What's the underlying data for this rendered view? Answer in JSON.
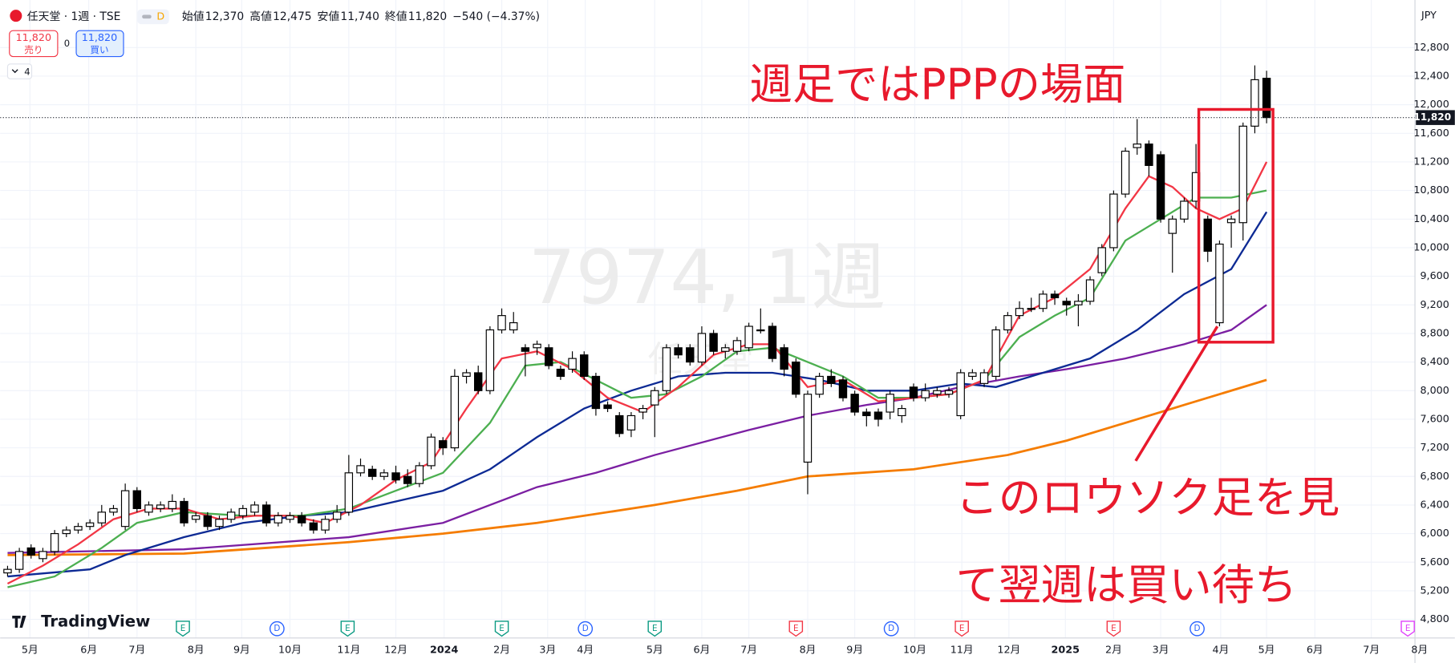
{
  "header": {
    "symbol": "任天堂 · 1週 · TSE",
    "badge": "D",
    "ohlc": [
      {
        "label": "始値",
        "value": "12,370"
      },
      {
        "label": "高値",
        "value": "12,475"
      },
      {
        "label": "安値",
        "value": "11,740"
      },
      {
        "label": "終値",
        "value": "11,820"
      }
    ],
    "change": "−540 (−4.37%)"
  },
  "trade": {
    "sell_price": "11,820",
    "sell_label": "売り",
    "spread": "0",
    "buy_price": "11,820",
    "buy_label": "買い"
  },
  "indicator_count": "4",
  "logo": "TradingView",
  "watermark": "7974, 1週",
  "watermark_sub": "任天堂",
  "chart_data": {
    "type": "candlestick",
    "currency": "JPY",
    "xlim": [
      -0.63,
      123.0
    ],
    "xticks": [
      {
        "value": 1.9,
        "label": "5月"
      },
      {
        "value": 6.9,
        "label": "6月"
      },
      {
        "value": 11.0,
        "label": "7月"
      },
      {
        "value": 16.0,
        "label": "8月"
      },
      {
        "value": 19.9,
        "label": "9月"
      },
      {
        "value": 24.0,
        "label": "10月"
      },
      {
        "value": 29.0,
        "label": "11月"
      },
      {
        "value": 33.0,
        "label": "12月"
      },
      {
        "value": 37.1,
        "label": "2024"
      },
      {
        "value": 42.0,
        "label": "2月"
      },
      {
        "value": 45.9,
        "label": "3月"
      },
      {
        "value": 49.1,
        "label": "4月"
      },
      {
        "value": 55.0,
        "label": "5月"
      },
      {
        "value": 59.0,
        "label": "6月"
      },
      {
        "value": 63.0,
        "label": "7月"
      },
      {
        "value": 68.0,
        "label": "8月"
      },
      {
        "value": 72.0,
        "label": "9月"
      },
      {
        "value": 77.1,
        "label": "10月"
      },
      {
        "value": 81.1,
        "label": "11月"
      },
      {
        "value": 85.1,
        "label": "12月"
      },
      {
        "value": 89.9,
        "label": "2025"
      },
      {
        "value": 94.0,
        "label": "2月"
      },
      {
        "value": 98.0,
        "label": "3月"
      },
      {
        "value": 103.1,
        "label": "4月"
      },
      {
        "value": 107.0,
        "label": "5月"
      },
      {
        "value": 111.1,
        "label": "6月"
      },
      {
        "value": 115.9,
        "label": "7月"
      },
      {
        "value": 120.0,
        "label": "8月"
      }
    ],
    "ylim": [
      4540,
      13400
    ],
    "yticks": [
      {
        "value": 4800,
        "label": "4,800"
      },
      {
        "value": 5200,
        "label": "5,200"
      },
      {
        "value": 5600,
        "label": "5,600"
      },
      {
        "value": 6000,
        "label": "6,000"
      },
      {
        "value": 6400,
        "label": "6,400"
      },
      {
        "value": 6800,
        "label": "6,800"
      },
      {
        "value": 7200,
        "label": "7,200"
      },
      {
        "value": 7600,
        "label": "7,600"
      },
      {
        "value": 8000,
        "label": "8,000"
      },
      {
        "value": 8400,
        "label": "8,400"
      },
      {
        "value": 8800,
        "label": "8,800"
      },
      {
        "value": 9200,
        "label": "9,200"
      },
      {
        "value": 9600,
        "label": "9,600"
      },
      {
        "value": 10000,
        "label": "10,000"
      },
      {
        "value": 10400,
        "label": "10,400"
      },
      {
        "value": 10800,
        "label": "10,800"
      },
      {
        "value": 11200,
        "label": "11,200"
      },
      {
        "value": 11600,
        "label": "11,600"
      },
      {
        "value": 12000,
        "label": "12,000"
      },
      {
        "value": 12400,
        "label": "12,400"
      },
      {
        "value": 12800,
        "label": "12,800"
      }
    ],
    "grid": true,
    "up_color": "#ffffff",
    "down_color": "#000000",
    "open": [
      5450,
      5500,
      5800,
      5650,
      5750,
      6000,
      6050,
      6100,
      6150,
      6300,
      6100,
      6600,
      6300,
      6350,
      6350,
      6450,
      6200,
      6250,
      6100,
      6200,
      6250,
      6300,
      6400,
      6150,
      6200,
      6250,
      6150,
      6050,
      6200,
      6300,
      6850,
      6900,
      6800,
      6850,
      6800,
      6700,
      6950,
      7300,
      7200,
      8200,
      8250,
      8000,
      8850,
      8850,
      8600,
      8600,
      8600,
      8300,
      8300,
      8500,
      8200,
      7800,
      7650,
      7450,
      7700,
      7800,
      8000,
      8600,
      8600,
      8400,
      8800,
      8550,
      8550,
      8600,
      8850,
      8900,
      8600,
      8400,
      7000,
      7950,
      8200,
      8150,
      7950,
      7700,
      7700,
      7700,
      7650,
      8050,
      7900,
      7950,
      7950,
      7650,
      8200,
      8100,
      8200,
      8850,
      9050,
      9150,
      9150,
      9350,
      9250,
      9200,
      9250,
      9650,
      10000,
      10750,
      11400,
      11450,
      11300,
      10200,
      10400,
      10650,
      10400,
      8950,
      10350,
      10350,
      11700,
      12370
    ],
    "high": [
      5550,
      5800,
      5850,
      5800,
      6050,
      6100,
      6150,
      6200,
      6400,
      6400,
      6700,
      6650,
      6450,
      6450,
      6550,
      6500,
      6300,
      6300,
      6250,
      6350,
      6400,
      6450,
      6450,
      6300,
      6300,
      6300,
      6200,
      6250,
      6400,
      7100,
      7050,
      6950,
      6900,
      6950,
      6900,
      7000,
      7400,
      7350,
      8300,
      8300,
      8350,
      8900,
      9150,
      9100,
      8650,
      8700,
      8650,
      8350,
      8550,
      8550,
      8250,
      7850,
      7700,
      7700,
      7800,
      8050,
      8650,
      8650,
      8650,
      8900,
      8850,
      8650,
      8750,
      8950,
      9150,
      8950,
      8650,
      8450,
      8000,
      8250,
      8300,
      8200,
      8000,
      7750,
      7750,
      8000,
      7800,
      8100,
      8100,
      8050,
      8050,
      8300,
      8300,
      8300,
      8900,
      9100,
      9250,
      9300,
      9400,
      9400,
      9300,
      9350,
      9600,
      10050,
      10800,
      11400,
      11800,
      11500,
      11350,
      10450,
      10700,
      11450,
      10450,
      10100,
      10450,
      11750,
      12550,
      12475
    ],
    "low": [
      5400,
      5450,
      5650,
      5600,
      5700,
      5950,
      6000,
      6050,
      6100,
      6250,
      6050,
      6300,
      6250,
      6300,
      6300,
      6100,
      6150,
      6050,
      6050,
      6150,
      6200,
      6250,
      6100,
      6100,
      6150,
      6100,
      6000,
      6000,
      6150,
      6250,
      6800,
      6750,
      6750,
      6700,
      6650,
      6650,
      6900,
      7100,
      7150,
      8100,
      7950,
      7950,
      8800,
      8800,
      8200,
      8500,
      8300,
      8150,
      8250,
      8150,
      7650,
      7700,
      7350,
      7350,
      7600,
      7350,
      7950,
      8450,
      8350,
      8350,
      8500,
      8450,
      8500,
      8550,
      8800,
      8400,
      8200,
      7900,
      6550,
      7900,
      8050,
      7850,
      7650,
      7500,
      7500,
      7600,
      7550,
      7850,
      7850,
      7900,
      7900,
      7600,
      8150,
      8050,
      8150,
      8800,
      9000,
      9100,
      9100,
      9200,
      9050,
      8900,
      9200,
      9600,
      9950,
      10700,
      11300,
      11000,
      10350,
      9650,
      10350,
      10550,
      9800,
      8900,
      10000,
      10100,
      11600,
      11740
    ],
    "close": [
      5500,
      5750,
      5700,
      5750,
      6000,
      6050,
      6100,
      6150,
      6300,
      6350,
      6600,
      6350,
      6400,
      6400,
      6450,
      6150,
      6250,
      6100,
      6200,
      6300,
      6350,
      6400,
      6150,
      6250,
      6250,
      6150,
      6050,
      6200,
      6300,
      6850,
      6950,
      6800,
      6850,
      6750,
      6700,
      6950,
      7350,
      7200,
      8200,
      8250,
      8000,
      8850,
      9050,
      8950,
      8550,
      8650,
      8350,
      8200,
      8450,
      8200,
      7750,
      7750,
      7400,
      7650,
      7750,
      8000,
      8600,
      8500,
      8400,
      8800,
      8550,
      8600,
      8700,
      8900,
      8850,
      8450,
      8300,
      7950,
      7950,
      8200,
      8100,
      7900,
      7700,
      7650,
      7600,
      7950,
      7750,
      7900,
      8000,
      8000,
      8000,
      8250,
      8250,
      8250,
      8850,
      9050,
      9150,
      9150,
      9350,
      9300,
      9200,
      9250,
      9550,
      10000,
      10750,
      11350,
      11450,
      11150,
      10400,
      10400,
      10650,
      11050,
      9950,
      10050,
      10400,
      11700,
      12350,
      11820
    ],
    "moving_averages": [
      {
        "color": "#f57c00",
        "x": [
          0,
          15,
          29,
          37,
          45,
          55,
          62,
          68,
          77,
          85,
          90,
          95,
          100,
          107
        ],
        "values": [
          5700,
          5720,
          5880,
          6000,
          6150,
          6400,
          6600,
          6800,
          6900,
          7100,
          7300,
          7550,
          7800,
          8150
        ]
      },
      {
        "color": "#7b1fa2",
        "x": [
          0,
          15,
          29,
          37,
          45,
          50,
          55,
          63,
          68,
          73,
          77,
          81,
          86,
          90,
          95,
          100,
          104,
          107
        ],
        "values": [
          5730,
          5780,
          5950,
          6150,
          6650,
          6850,
          7100,
          7450,
          7650,
          7800,
          7900,
          8050,
          8200,
          8300,
          8450,
          8650,
          8850,
          9200
        ]
      },
      {
        "color": "#0d2a94",
        "x": [
          0,
          7,
          10,
          15,
          20,
          25,
          29,
          33,
          37,
          41,
          45,
          49,
          53,
          57,
          61,
          65,
          69,
          73,
          77,
          81,
          84,
          88,
          92,
          96,
          100,
          104,
          107
        ],
        "values": [
          5400,
          5500,
          5700,
          5950,
          6150,
          6250,
          6300,
          6450,
          6600,
          6900,
          7350,
          7750,
          8000,
          8200,
          8250,
          8250,
          8150,
          8000,
          8000,
          8100,
          8050,
          8250,
          8450,
          8850,
          9350,
          9700,
          10500
        ]
      },
      {
        "color": "#4caf50",
        "x": [
          0,
          4,
          8,
          11,
          15,
          20,
          25,
          29,
          33,
          37,
          41,
          44,
          47,
          50,
          53,
          56,
          59,
          62,
          65,
          68,
          71,
          74,
          77,
          80,
          83,
          86,
          89,
          92,
          95,
          98,
          101,
          104,
          107
        ],
        "values": [
          5250,
          5400,
          5800,
          6150,
          6300,
          6250,
          6250,
          6350,
          6600,
          6850,
          7550,
          8350,
          8400,
          8150,
          7900,
          7950,
          8200,
          8550,
          8600,
          8400,
          8200,
          7900,
          7900,
          7950,
          8150,
          8750,
          9050,
          9300,
          10100,
          10400,
          10700,
          10700,
          10800
        ]
      },
      {
        "color": "#f23645",
        "x": [
          0,
          3,
          6,
          9,
          12,
          15,
          18,
          21,
          24,
          27,
          30,
          33,
          36,
          39,
          42,
          45,
          48,
          51,
          54,
          57,
          60,
          63,
          65,
          68,
          71,
          74,
          77,
          80,
          83,
          86,
          89,
          92,
          95,
          97,
          99,
          101,
          103,
          105,
          107
        ],
        "values": [
          5300,
          5550,
          5850,
          6200,
          6350,
          6350,
          6200,
          6250,
          6250,
          6150,
          6400,
          6750,
          7000,
          7750,
          8450,
          8550,
          8300,
          7900,
          7700,
          8050,
          8500,
          8650,
          8650,
          8050,
          8150,
          7850,
          7900,
          7950,
          8150,
          9050,
          9300,
          9700,
          10550,
          11000,
          10850,
          10550,
          10400,
          10550,
          11200
        ]
      }
    ],
    "current_price": {
      "value": 11820,
      "label": "11,820"
    },
    "annotations": [
      "週足ではPPPの場面",
      "このロウソク足を見",
      "て翌週は買い待ち"
    ],
    "events": [
      {
        "label": "E",
        "x": 14.9,
        "color": "#089981"
      },
      {
        "label": "D",
        "x": 22.9,
        "color": "#2962ff"
      },
      {
        "label": "E",
        "x": 28.9,
        "color": "#089981"
      },
      {
        "label": "E",
        "x": 42.0,
        "color": "#089981"
      },
      {
        "label": "D",
        "x": 49.1,
        "color": "#2962ff"
      },
      {
        "label": "E",
        "x": 55.0,
        "color": "#089981"
      },
      {
        "label": "E",
        "x": 67.0,
        "color": "#f23645"
      },
      {
        "label": "D",
        "x": 75.1,
        "color": "#2962ff"
      },
      {
        "label": "E",
        "x": 81.1,
        "color": "#f23645"
      },
      {
        "label": "E",
        "x": 94.0,
        "color": "#f23645"
      },
      {
        "label": "D",
        "x": 101.1,
        "color": "#2962ff"
      },
      {
        "label": "E",
        "x": 119.0,
        "color": "#e040fb"
      }
    ]
  }
}
